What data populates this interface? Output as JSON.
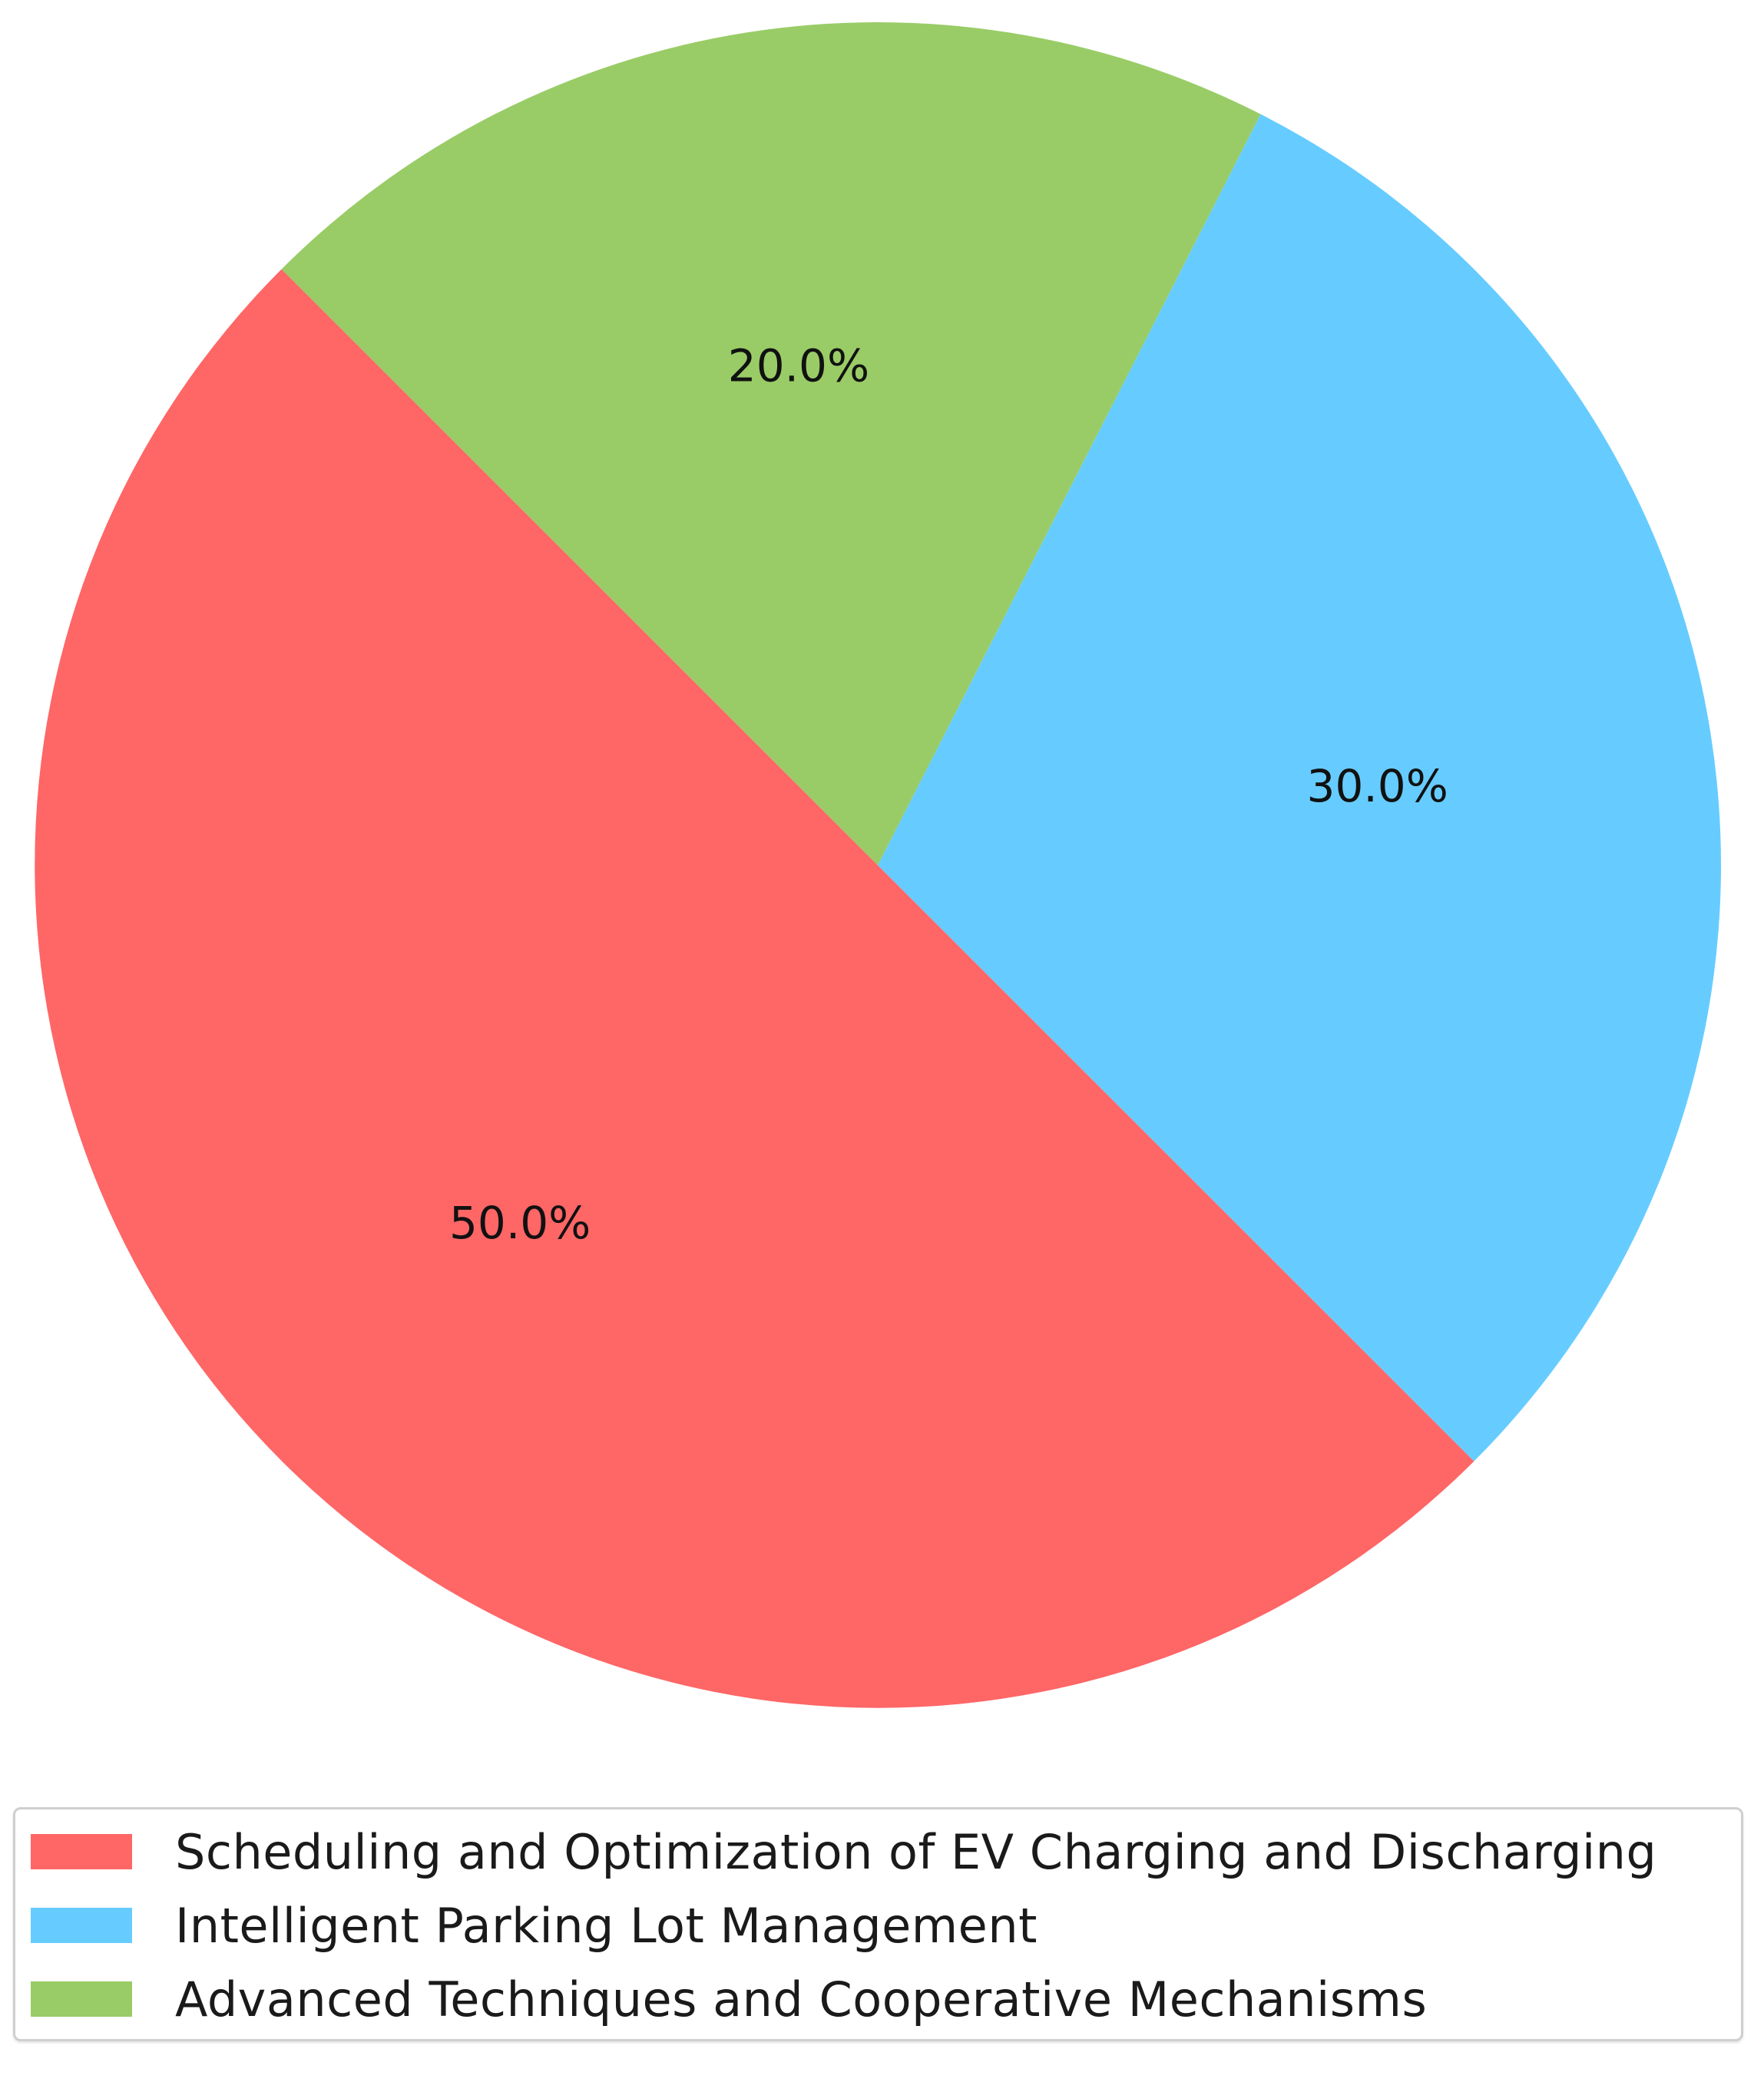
{
  "chart_data": {
    "type": "pie",
    "start_angle_deg": 135,
    "direction": "counterclockwise",
    "slices": [
      {
        "label": "Scheduling and Optimization of EV Charging and Discharging",
        "value": 50.0,
        "pct_text": "50.0%",
        "color": "#ff6666"
      },
      {
        "label": "Intelligent Parking Lot Management",
        "value": 30.0,
        "pct_text": "30.0%",
        "color": "#66ccff"
      },
      {
        "label": "Advanced Techniques and Cooperative Mechanisms",
        "value": 20.0,
        "pct_text": "20.0%",
        "color": "#99cc66"
      }
    ],
    "legend_position": "bottom"
  }
}
